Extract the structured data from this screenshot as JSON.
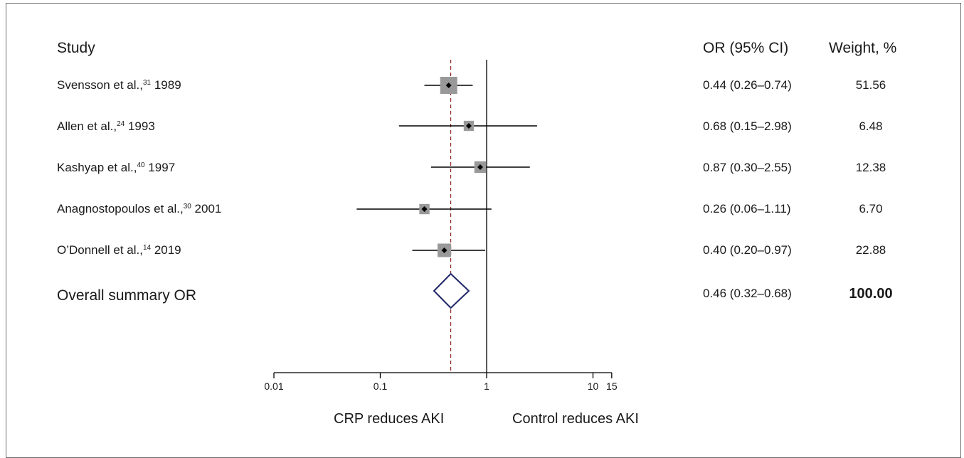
{
  "headers": {
    "study": "Study",
    "or": "OR (95% CI)",
    "weight": "Weight, %"
  },
  "rows": [
    {
      "name": "Svensson et al.,",
      "ref": "31",
      "year": "1989",
      "or_text": "0.44 (0.26–0.74)",
      "weight": "51.56"
    },
    {
      "name": "Allen et al.,",
      "ref": "24",
      "year": "1993",
      "or_text": "0.68 (0.15–2.98)",
      "weight": "6.48"
    },
    {
      "name": "Kashyap et al.,",
      "ref": "40",
      "year": "1997",
      "or_text": "0.87 (0.30–2.55)",
      "weight": "12.38"
    },
    {
      "name": "Anagnostopoulos et al.,",
      "ref": "30",
      "year": "2001",
      "or_text": "0.26 (0.06–1.11)",
      "weight": "6.70"
    },
    {
      "name": "O’Donnell et al.,",
      "ref": "14",
      "year": "2019",
      "or_text": "0.40 (0.20–0.97)",
      "weight": "22.88"
    }
  ],
  "overall": {
    "label": "Overall summary OR",
    "or_text": "0.46 (0.32–0.68)",
    "weight": "100.00"
  },
  "axis_labels": {
    "left": "CRP reduces AKI",
    "right": "Control reduces AKI"
  },
  "chart_data": {
    "type": "forest",
    "x_scale": "log",
    "xlim": [
      0.01,
      15
    ],
    "x_ticks": [
      0.01,
      0.1,
      1,
      10,
      15
    ],
    "x_tick_labels": [
      "0.01",
      "0.1",
      "1",
      "10",
      "15"
    ],
    "reference_line": 1,
    "summary_line": 0.46,
    "series": [
      {
        "study": "Svensson et al., 1989",
        "or": 0.44,
        "lower": 0.26,
        "upper": 0.74,
        "weight": 51.56
      },
      {
        "study": "Allen et al., 1993",
        "or": 0.68,
        "lower": 0.15,
        "upper": 2.98,
        "weight": 6.48
      },
      {
        "study": "Kashyap et al., 1997",
        "or": 0.87,
        "lower": 0.3,
        "upper": 2.55,
        "weight": 12.38
      },
      {
        "study": "Anagnostopoulos et al., 2001",
        "or": 0.26,
        "lower": 0.06,
        "upper": 1.11,
        "weight": 6.7
      },
      {
        "study": "O’Donnell et al., 2019",
        "or": 0.4,
        "lower": 0.2,
        "upper": 0.97,
        "weight": 22.88
      }
    ],
    "summary": {
      "or": 0.46,
      "lower": 0.32,
      "upper": 0.68
    },
    "colors": {
      "line": "#000000",
      "marker": "#999999",
      "diamond": "#1e2566",
      "summary_line": "#8b1f1f"
    }
  }
}
